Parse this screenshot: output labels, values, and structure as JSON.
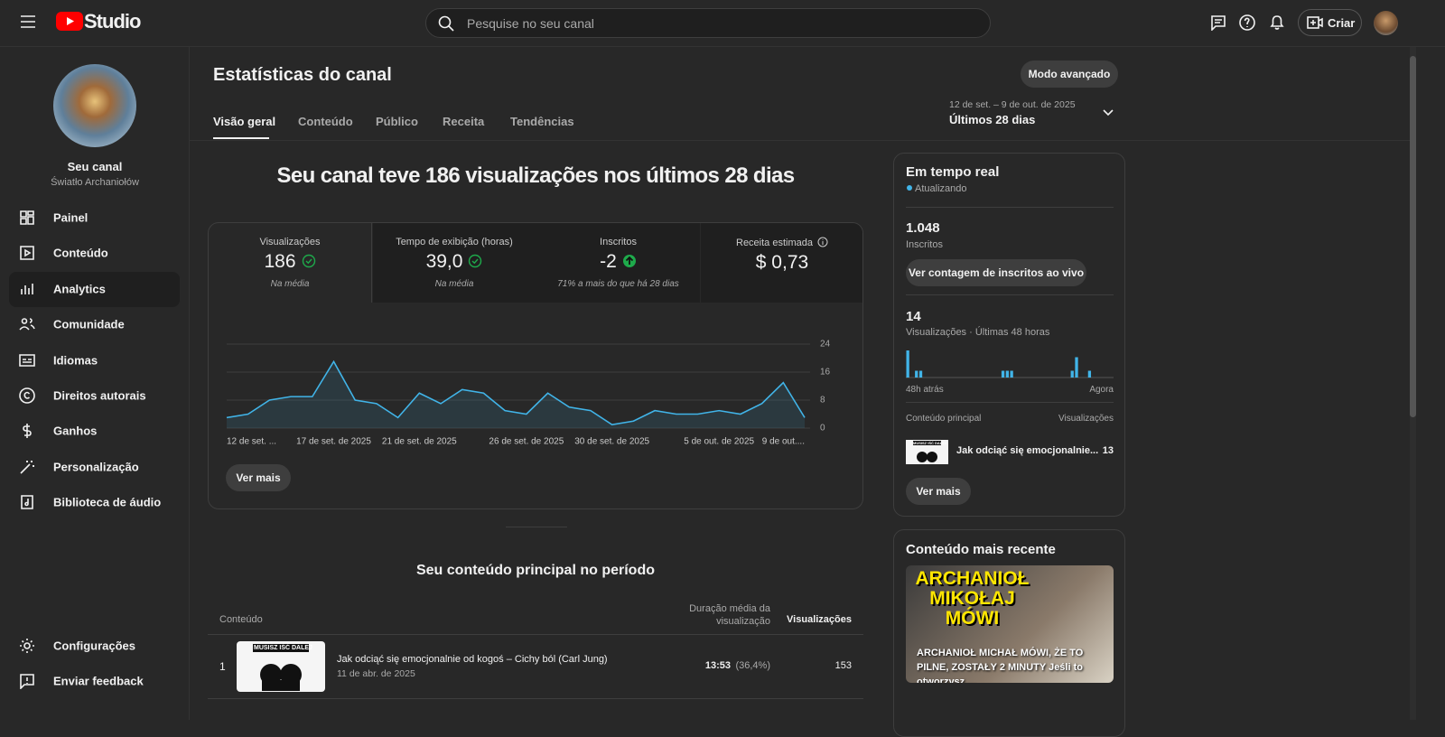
{
  "header": {
    "logo": "Studio",
    "search_placeholder": "Pesquise no seu canal",
    "create_button": "Criar"
  },
  "sidebar": {
    "channel_label": "Seu canal",
    "channel_name": "Światło Archaniołów",
    "nav": [
      "Painel",
      "Conteúdo",
      "Analytics",
      "Comunidade",
      "Idiomas",
      "Direitos autorais",
      "Ganhos",
      "Personalização",
      "Biblioteca de áudio"
    ],
    "bottom_nav": [
      "Configurações",
      "Enviar feedback"
    ]
  },
  "page": {
    "title": "Estatísticas do canal",
    "advanced_button": "Modo avançado",
    "tabs": [
      "Visão geral",
      "Conteúdo",
      "Público",
      "Receita",
      "Tendências"
    ],
    "date_range": "12 de set. – 9 de out. de 2025",
    "period": "Últimos 28 dias"
  },
  "overview": {
    "headline": "Seu canal teve 186 visualizações nos últimos 28 dias",
    "metrics": [
      {
        "label": "Visualizações",
        "value": "186",
        "note": "Na média"
      },
      {
        "label": "Tempo de exibição (horas)",
        "value": "39,0",
        "note": "Na média"
      },
      {
        "label": "Inscritos",
        "value": "-2",
        "note": "71% a mais do que há 28 dias"
      },
      {
        "label": "Receita estimada",
        "value": "$ 0,73"
      }
    ],
    "more_button": "Ver mais"
  },
  "main_chart": {
    "type": "line",
    "categories": [
      "12 de set. ...",
      null,
      null,
      null,
      null,
      "17 de set. de 2025",
      null,
      null,
      null,
      "21 de set. de 2025",
      null,
      null,
      null,
      null,
      "26 de set. de 2025",
      null,
      null,
      null,
      "30 de set. de 2025",
      null,
      null,
      null,
      null,
      "5 de out. de 2025",
      null,
      null,
      null,
      "9 de out...."
    ],
    "values": [
      3,
      4,
      8,
      9,
      9,
      19,
      8,
      7,
      3,
      10,
      7,
      11,
      10,
      5,
      4,
      10,
      6,
      5,
      1,
      2,
      5,
      4,
      4,
      5,
      4,
      7,
      13,
      3
    ],
    "color": "#41b4e8",
    "ylim": [
      0,
      24
    ],
    "yticks": [
      0,
      8,
      16,
      24
    ],
    "grid": true
  },
  "top_content": {
    "title": "Seu conteúdo principal no período",
    "columns": [
      "Conteúdo",
      "Duração média da visualização",
      "Visualizações"
    ],
    "rows": [
      {
        "rank": "1",
        "thumbnail_text": "MUSISZ IŚĆ DALEJ",
        "title": "Jak odciąć się emocjonalnie od kogoś – Cichy ból (Carl Jung)",
        "date": "11 de abr. de 2025",
        "avg_duration": "13:53",
        "avg_percent": "(36,4%)",
        "views": 153
      }
    ]
  },
  "realtime": {
    "title": "Em tempo real",
    "status": "Atualizando",
    "subscribers": "1.048",
    "subscribers_label": "Inscritos",
    "live_count_button": "Ver contagem de inscritos ao vivo",
    "views": "14",
    "views_label": "Visualizações · Últimas 48 horas",
    "chart": {
      "type": "bar",
      "values": [
        4,
        0,
        1,
        1,
        0,
        0,
        0,
        0,
        0,
        0,
        0,
        0,
        0,
        0,
        0,
        0,
        0,
        0,
        0,
        0,
        0,
        0,
        1,
        1,
        1,
        0,
        0,
        0,
        0,
        0,
        0,
        0,
        0,
        0,
        0,
        0,
        0,
        0,
        1,
        3,
        0,
        0,
        1,
        0,
        0,
        0,
        0,
        0
      ],
      "color": "#41b4e8",
      "start_label": "48h atrás",
      "end_label": "Agora"
    },
    "top_label": "Conteúdo principal",
    "top_views_label": "Visualizações",
    "top_item": {
      "thumbnail_text": "MUSISZ IŚĆ DALEJ",
      "title": "Jak odciąć się emocjonalnie...",
      "views": 13
    },
    "more_button": "Ver mais"
  },
  "latest": {
    "title": "Conteúdo mais recente",
    "thumbnail_text": "ARCHANIOŁ MIKOŁAJ MÓWI",
    "caption": "ARCHANIOŁ MICHAŁ MÓWI, ŻE TO PILNE, ZOSTAŁY 2 MINUTY Jeśli to otworzysz,..."
  }
}
